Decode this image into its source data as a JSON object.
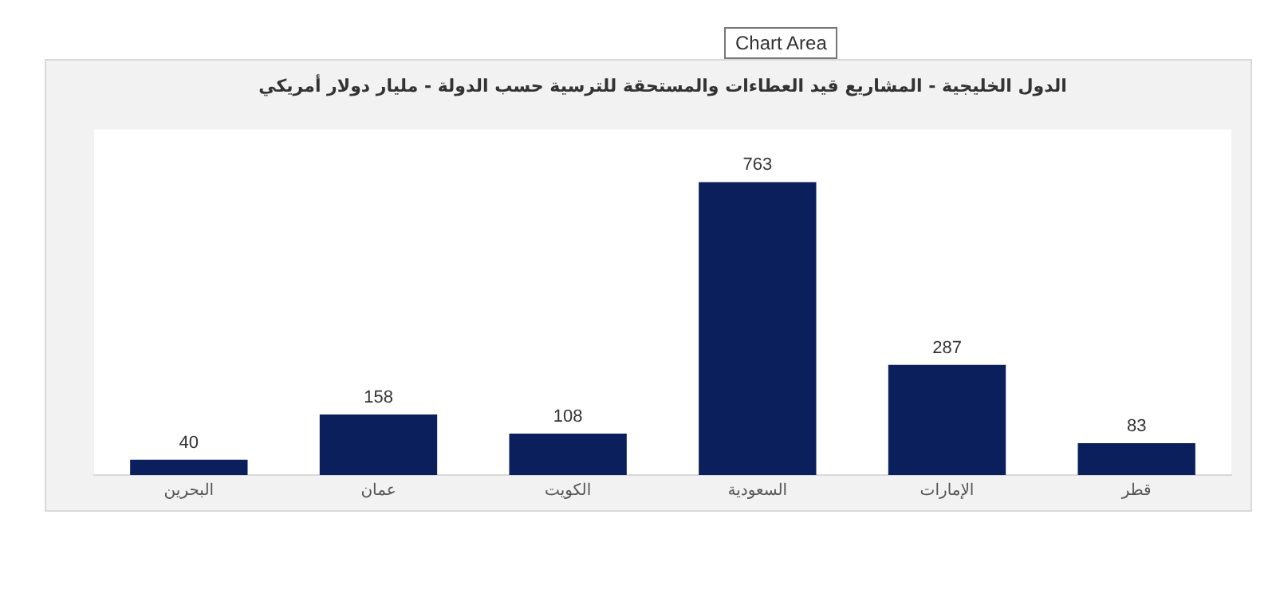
{
  "chart_data": {
    "type": "bar",
    "title": "الدول الخليجية - المشاريع قيد العطاءات والمستحقة للترسية حسب الدولة - مليار دولار أمريكي",
    "categories": [
      "البحرين",
      "عمان",
      "الكويت",
      "السعودية",
      "الإمارات",
      "قطر"
    ],
    "values": [
      40,
      158,
      108,
      763,
      287,
      83
    ],
    "color": "#0a1f5c",
    "data_labels": true,
    "grid": false,
    "legend": false,
    "annotations": [
      "Chart Area"
    ]
  }
}
